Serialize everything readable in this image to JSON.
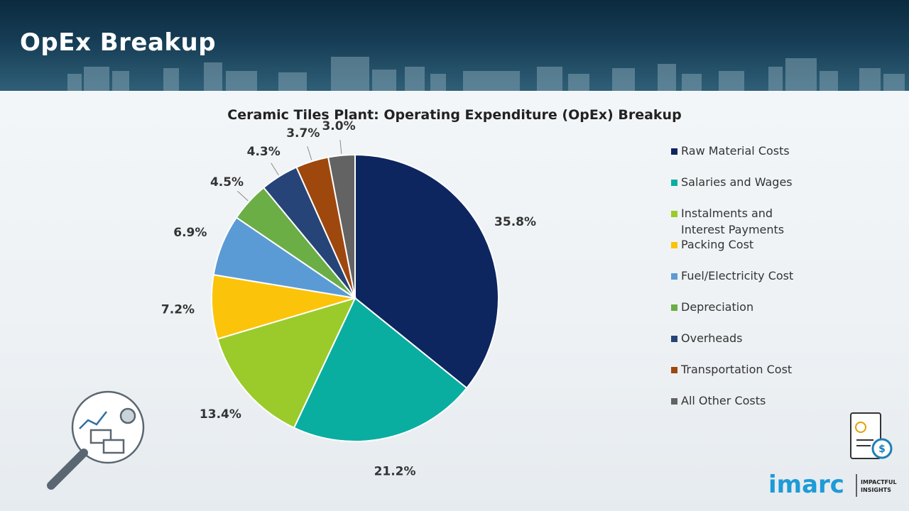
{
  "header": {
    "title": "OpEx Breakup"
  },
  "brand": {
    "name": "imarc",
    "tagline_1": "IMPACTFUL",
    "tagline_2": "INSIGHTS"
  },
  "chart_data": {
    "type": "pie",
    "title": "Ceramic Tiles Plant: Operating Expenditure (OpEx) Breakup",
    "unit": "%",
    "legend_position": "right",
    "slices": [
      {
        "label": "Raw Material Costs",
        "value": 35.8,
        "display": "35.8%",
        "color": "#0d2660"
      },
      {
        "label": "Salaries and Wages",
        "value": 21.2,
        "display": "21.2%",
        "color": "#0aaea1"
      },
      {
        "label": "Instalments and Interest Payments",
        "label_lines": [
          "Instalments and",
          "Interest Payments"
        ],
        "value": 13.4,
        "display": "13.4%",
        "color": "#9acb2a"
      },
      {
        "label": "Packing Cost",
        "value": 7.2,
        "display": "7.2%",
        "color": "#fcc30b"
      },
      {
        "label": "Fuel/Electricity Cost",
        "value": 6.9,
        "display": "6.9%",
        "color": "#5b9bd5"
      },
      {
        "label": "Depreciation",
        "value": 4.5,
        "display": "4.5%",
        "color": "#6aae45"
      },
      {
        "label": "Overheads",
        "value": 4.3,
        "display": "4.3%",
        "color": "#264478"
      },
      {
        "label": "Transportation Cost",
        "value": 3.7,
        "display": "3.7%",
        "color": "#9e480e"
      },
      {
        "label": "All Other Costs",
        "value": 3.0,
        "display": "3.0%",
        "color": "#636363"
      }
    ]
  }
}
